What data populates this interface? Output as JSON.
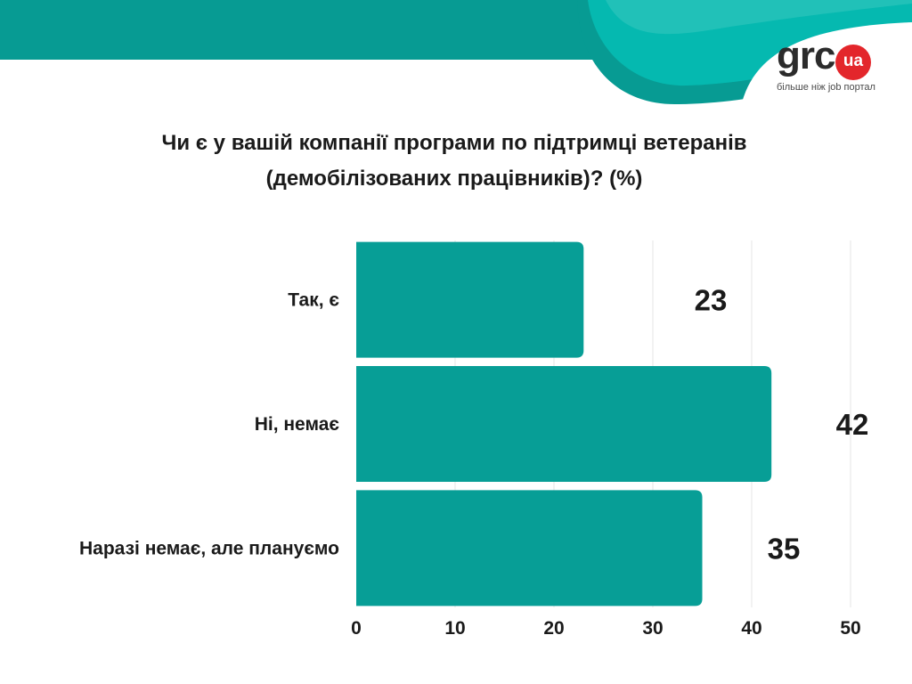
{
  "header": {
    "logo_word": "grc",
    "logo_badge": "ua",
    "logo_tagline": "більше ніж job портал"
  },
  "colors": {
    "bar": "#079e96",
    "header_band": "#079b93",
    "header_wave_light": "#05b9b0",
    "text": "#1a1a1a",
    "grid": "#e6e6e6"
  },
  "chart_data": {
    "type": "bar",
    "orientation": "horizontal",
    "title_lines": [
      "Чи є у вашій компанії програми по підтримці ветеранів",
      "(демобілізованих працівників)? (%)"
    ],
    "categories": [
      "Так, є",
      "Ні, немає",
      "Наразі немає, але плануємо"
    ],
    "values": [
      23,
      42,
      35
    ],
    "value_labels": [
      "23",
      "42",
      "35"
    ],
    "xlim": [
      0,
      50
    ],
    "xticks": [
      0,
      10,
      20,
      30,
      40,
      50
    ],
    "grid": true,
    "legend": "none"
  }
}
